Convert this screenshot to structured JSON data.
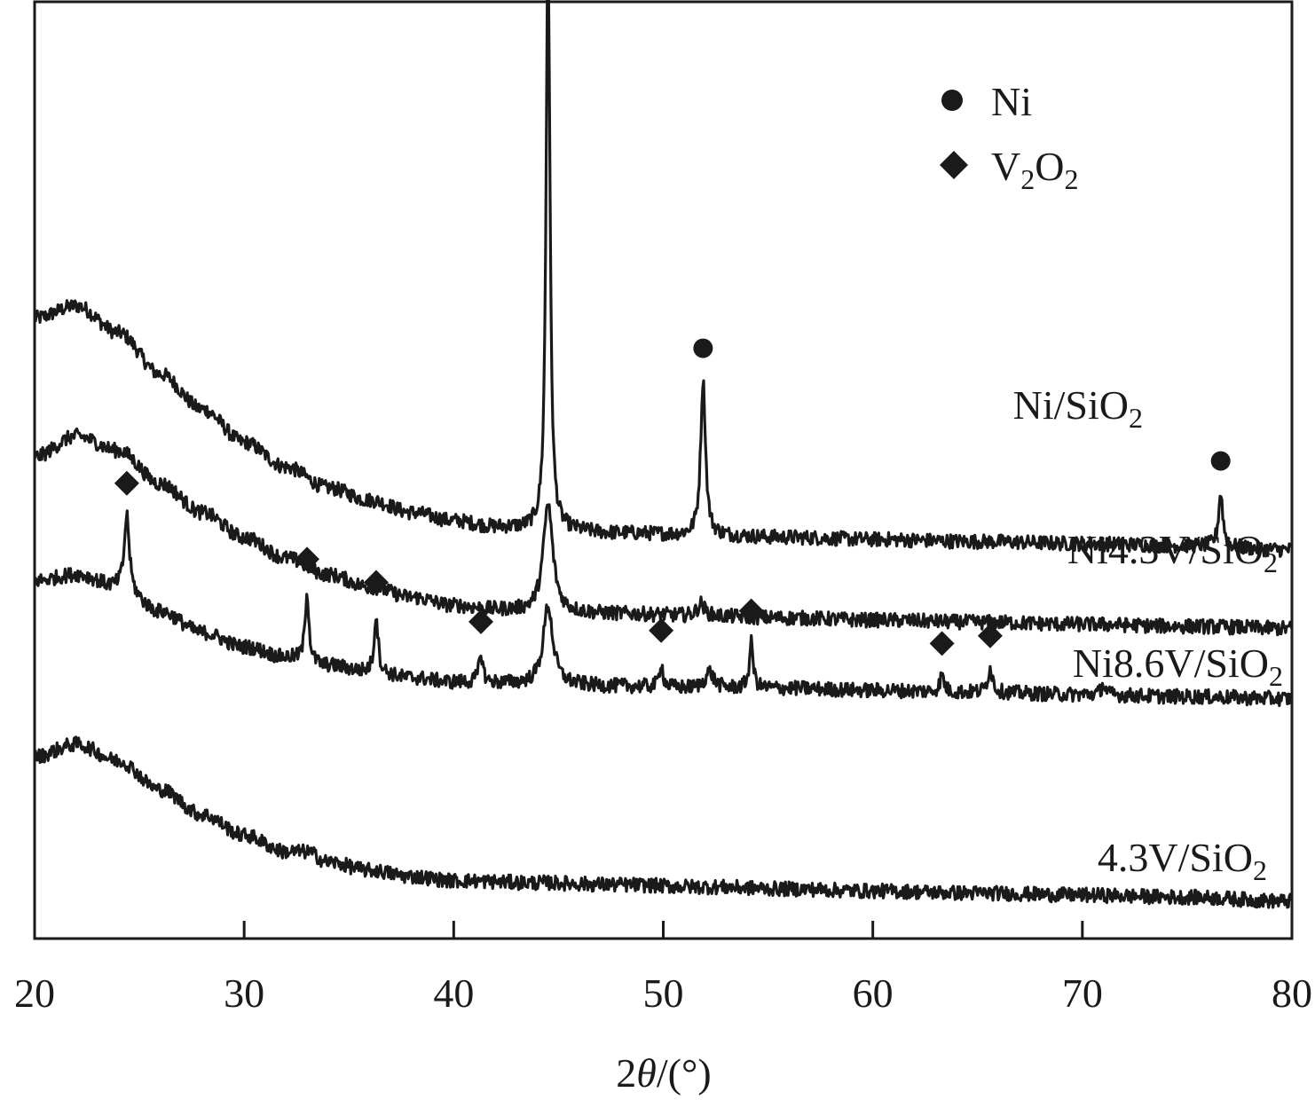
{
  "chart_data": {
    "type": "line",
    "title": "",
    "xlabel": "2θ/(°)",
    "xlabel_parts": {
      "prefix": "2",
      "theta": "θ",
      "suffix": "/(°)"
    },
    "ylabel": "",
    "xlim": [
      20,
      80
    ],
    "xticks": [
      20,
      30,
      40,
      50,
      60,
      70,
      80
    ],
    "grid": false,
    "legend": [
      {
        "marker": "circle",
        "label": "Ni",
        "label_main": "Ni",
        "label_parts": []
      },
      {
        "marker": "diamond",
        "label": "V2O2",
        "label_parts": [
          {
            "t": "V",
            "sub": false
          },
          {
            "t": "2",
            "sub": true
          },
          {
            "t": "O",
            "sub": false
          },
          {
            "t": "2",
            "sub": true
          }
        ]
      }
    ],
    "legend_position": "top-right",
    "series": [
      {
        "name": "Ni/SiO2",
        "label_main": "Ni/SiO",
        "label_sub": "2",
        "baseline": [
          [
            20,
            1.82
          ],
          [
            22,
            1.88
          ],
          [
            24,
            1.75
          ],
          [
            26,
            1.55
          ],
          [
            28,
            1.38
          ],
          [
            30,
            1.22
          ],
          [
            32,
            1.1
          ],
          [
            34,
            1.0
          ],
          [
            36,
            0.94
          ],
          [
            38,
            0.88
          ],
          [
            40,
            0.84
          ],
          [
            42,
            0.81
          ],
          [
            44,
            0.8
          ],
          [
            48,
            0.78
          ],
          [
            52,
            0.77
          ],
          [
            56,
            0.76
          ],
          [
            60,
            0.75
          ],
          [
            65,
            0.74
          ],
          [
            70,
            0.73
          ],
          [
            75,
            0.72
          ],
          [
            80,
            0.7
          ]
        ],
        "peaks": [
          {
            "x": 44.5,
            "height": 2.85,
            "width": 0.22,
            "marker": "circle"
          },
          {
            "x": 51.9,
            "height": 0.75,
            "width": 0.28,
            "marker": "circle"
          },
          {
            "x": 76.6,
            "height": 0.26,
            "width": 0.25,
            "marker": "circle"
          }
        ]
      },
      {
        "name": "Ni4.3V/SiO2",
        "label_main": "Ni4.3V/SiO",
        "label_sub": "2",
        "baseline": [
          [
            20,
            1.15
          ],
          [
            22,
            1.25
          ],
          [
            24,
            1.18
          ],
          [
            26,
            1.02
          ],
          [
            28,
            0.88
          ],
          [
            30,
            0.76
          ],
          [
            32,
            0.66
          ],
          [
            34,
            0.58
          ],
          [
            36,
            0.52
          ],
          [
            38,
            0.47
          ],
          [
            40,
            0.43
          ],
          [
            42,
            0.41
          ],
          [
            44,
            0.4
          ],
          [
            48,
            0.39
          ],
          [
            52,
            0.38
          ],
          [
            56,
            0.37
          ],
          [
            60,
            0.36
          ],
          [
            65,
            0.35
          ],
          [
            70,
            0.34
          ],
          [
            75,
            0.33
          ],
          [
            80,
            0.32
          ]
        ],
        "peaks": [
          {
            "x": 44.5,
            "height": 0.52,
            "width": 0.55,
            "marker": null
          },
          {
            "x": 51.8,
            "height": 0.06,
            "width": 0.4,
            "marker": null
          }
        ]
      },
      {
        "name": "Ni8.6V/SiO2",
        "label_main": "Ni8.6V/SiO",
        "label_sub": "2",
        "baseline": [
          [
            20,
            0.55
          ],
          [
            22,
            0.58
          ],
          [
            24,
            0.52
          ],
          [
            26,
            0.4
          ],
          [
            28,
            0.3
          ],
          [
            30,
            0.23
          ],
          [
            32,
            0.18
          ],
          [
            34,
            0.14
          ],
          [
            36,
            0.11
          ],
          [
            38,
            0.08
          ],
          [
            40,
            0.06
          ],
          [
            44,
            0.05
          ],
          [
            48,
            0.04
          ],
          [
            52,
            0.03
          ],
          [
            56,
            0.03
          ],
          [
            60,
            0.02
          ],
          [
            65,
            0.01
          ],
          [
            70,
            0.0
          ],
          [
            75,
            -0.01
          ],
          [
            80,
            -0.02
          ]
        ],
        "peaks": [
          {
            "x": 24.4,
            "height": 0.36,
            "width": 0.28,
            "marker": "diamond"
          },
          {
            "x": 33.0,
            "height": 0.34,
            "width": 0.22,
            "marker": "diamond"
          },
          {
            "x": 36.3,
            "height": 0.28,
            "width": 0.22,
            "marker": "diamond"
          },
          {
            "x": 41.3,
            "height": 0.14,
            "width": 0.22,
            "marker": "diamond"
          },
          {
            "x": 44.5,
            "height": 0.38,
            "width": 0.55,
            "marker": null
          },
          {
            "x": 49.9,
            "height": 0.12,
            "width": 0.2,
            "marker": "diamond"
          },
          {
            "x": 52.2,
            "height": 0.08,
            "width": 0.5,
            "marker": null
          },
          {
            "x": 54.2,
            "height": 0.22,
            "width": 0.22,
            "marker": "diamond"
          },
          {
            "x": 63.3,
            "height": 0.08,
            "width": 0.25,
            "marker": "diamond"
          },
          {
            "x": 65.6,
            "height": 0.12,
            "width": 0.28,
            "marker": "diamond"
          },
          {
            "x": 71.0,
            "height": 0.05,
            "width": 0.25,
            "marker": null
          }
        ]
      },
      {
        "name": "4.3V/SiO2",
        "label_main": "4.3V/SiO",
        "label_sub": "2",
        "baseline": [
          [
            20,
            -0.3
          ],
          [
            22,
            -0.24
          ],
          [
            24,
            -0.32
          ],
          [
            26,
            -0.46
          ],
          [
            28,
            -0.58
          ],
          [
            30,
            -0.68
          ],
          [
            32,
            -0.76
          ],
          [
            33,
            -0.76
          ],
          [
            34,
            -0.81
          ],
          [
            36,
            -0.85
          ],
          [
            38,
            -0.88
          ],
          [
            40,
            -0.9
          ],
          [
            44,
            -0.91
          ],
          [
            48,
            -0.92
          ],
          [
            52,
            -0.93
          ],
          [
            56,
            -0.94
          ],
          [
            60,
            -0.95
          ],
          [
            65,
            -0.96
          ],
          [
            70,
            -0.97
          ],
          [
            75,
            -0.98
          ],
          [
            80,
            -1.0
          ]
        ],
        "peaks": []
      }
    ],
    "ylim": [
      -1.18,
      3.35
    ],
    "noise_amplitude": 0.035,
    "line_color": "#1a1a1a"
  }
}
